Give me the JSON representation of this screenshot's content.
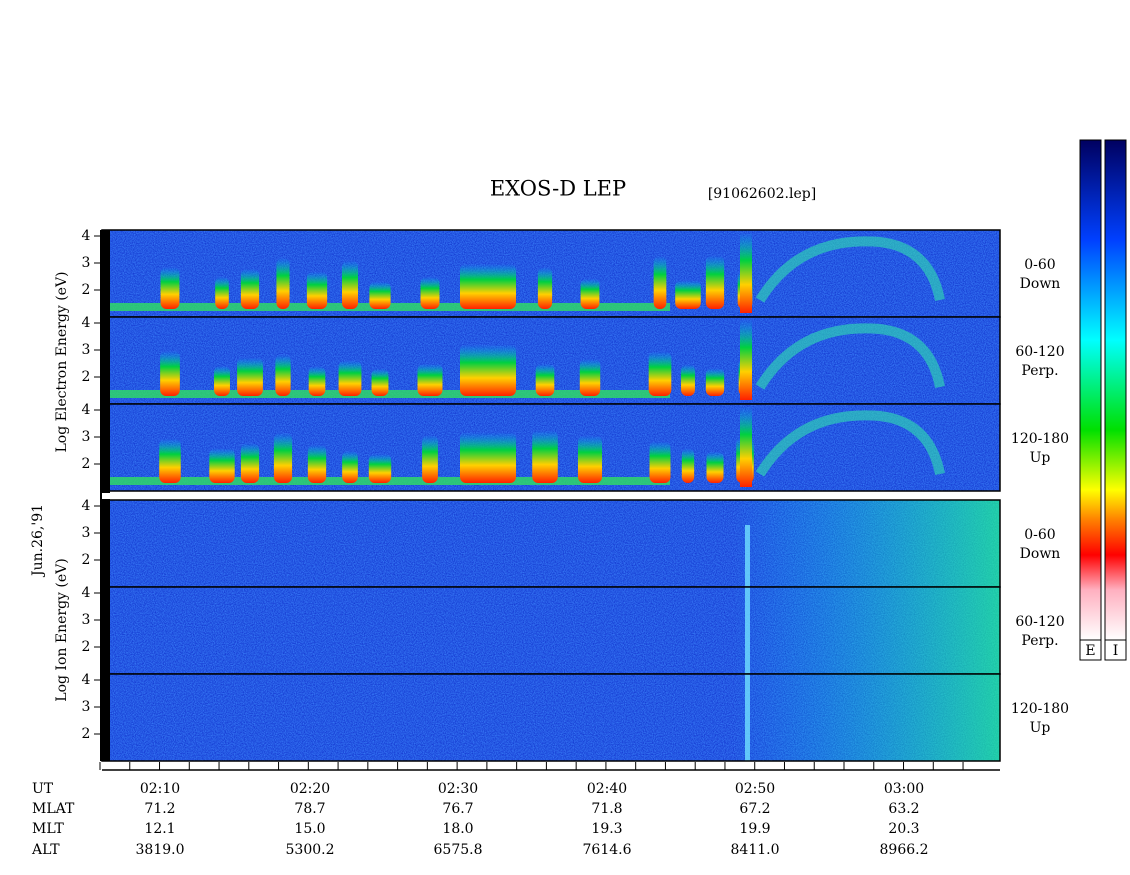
{
  "header": {
    "title": "EXOS-D LEP",
    "file": "[91062602.lep]"
  },
  "electron_axis_label": "Log Electron Energy (eV)",
  "date": "Jun.26,'91",
  "ion_axis_label": "Log Ion Energy (eV)",
  "panels": [
    {
      "angle": "0-60",
      "direction": "Down",
      "ticks": [
        "4",
        "3",
        "2"
      ]
    },
    {
      "angle": "60-120",
      "direction": "Perp.",
      "ticks": [
        "4",
        "3",
        "2"
      ]
    },
    {
      "angle": "120-180",
      "direction": "Up",
      "ticks": [
        "4",
        "3",
        "2"
      ]
    },
    {
      "angle": "0-60",
      "direction": "Down",
      "ticks": [
        "4",
        "3",
        "2"
      ]
    },
    {
      "angle": "60-120",
      "direction": "Perp.",
      "ticks": [
        "4",
        "3",
        "2"
      ]
    },
    {
      "angle": "120-180",
      "direction": "Up",
      "ticks": [
        "4",
        "3",
        "2"
      ]
    }
  ],
  "ephemeris": [
    {
      "label": "UT",
      "values": [
        "02:10",
        "02:20",
        "02:30",
        "02:40",
        "02:50",
        "03:00"
      ]
    },
    {
      "label": "MLAT",
      "values": [
        "71.2",
        "78.7",
        "76.7",
        "71.8",
        "67.2",
        "63.2"
      ]
    },
    {
      "label": "MLT",
      "values": [
        "12.1",
        "15.0",
        "18.0",
        "19.3",
        "19.9",
        "20.3"
      ]
    },
    {
      "label": "ALT",
      "values": [
        "3819.0",
        "5300.2",
        "6575.8",
        "7614.6",
        "8411.0",
        "8966.2"
      ]
    }
  ],
  "colorbars": [
    "E",
    "I"
  ]
}
